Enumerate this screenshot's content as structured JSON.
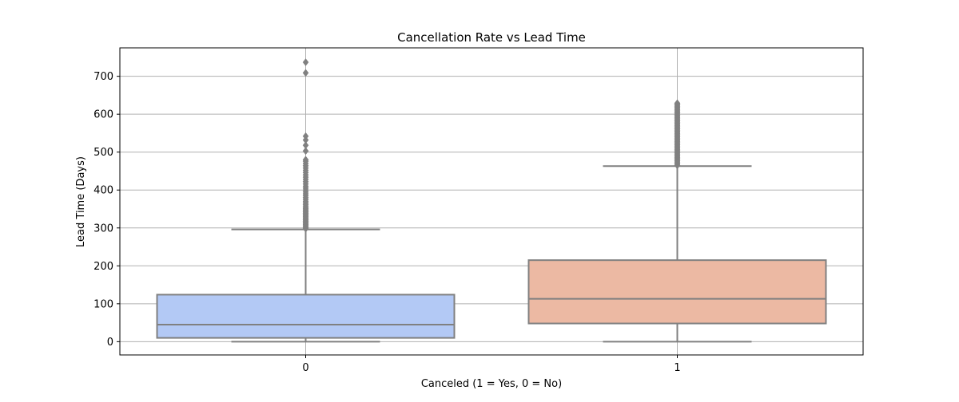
{
  "chart_data": {
    "type": "box",
    "title": "Cancellation Rate vs Lead Time",
    "xlabel": "Canceled (1 = Yes, 0 = No)",
    "ylabel": "Lead Time (Days)",
    "categories": [
      "0",
      "1"
    ],
    "ylim": [
      -35,
      775
    ],
    "yticks": [
      0,
      100,
      200,
      300,
      400,
      500,
      600,
      700
    ],
    "ytick_labels": [
      "0",
      "100",
      "200",
      "300",
      "400",
      "500",
      "600",
      "700"
    ],
    "grid": true,
    "boxes": [
      {
        "category": "0",
        "min": 0,
        "q1": 10,
        "median": 45,
        "q3": 124,
        "max": 296,
        "fill": "#b3c9f5",
        "outliers": [
          298,
          300,
          303,
          306,
          309,
          312,
          315,
          318,
          321,
          324,
          327,
          330,
          333,
          336,
          339,
          342,
          345,
          348,
          351,
          354,
          358,
          362,
          366,
          370,
          375,
          380,
          385,
          390,
          395,
          400,
          405,
          410,
          416,
          422,
          428,
          434,
          440,
          446,
          452,
          458,
          464,
          470,
          476,
          480,
          503,
          518,
          532,
          542,
          709,
          737
        ]
      },
      {
        "category": "1",
        "min": 0,
        "q1": 48,
        "median": 113,
        "q3": 215,
        "max": 463,
        "fill": "#ecb9a3",
        "outliers": [
          465,
          468,
          471,
          474,
          477,
          480,
          483,
          486,
          489,
          492,
          495,
          498,
          501,
          504,
          507,
          510,
          513,
          516,
          519,
          522,
          525,
          528,
          531,
          534,
          537,
          540,
          543,
          546,
          549,
          552,
          555,
          558,
          561,
          564,
          567,
          570,
          573,
          576,
          579,
          582,
          585,
          588,
          591,
          594,
          597,
          600,
          603,
          606,
          609,
          612,
          615,
          618,
          621,
          624,
          627,
          629
        ]
      }
    ],
    "colors": {
      "box_edge": "#808080",
      "grid": "#b0b0b0",
      "outlier": "#808080"
    }
  }
}
